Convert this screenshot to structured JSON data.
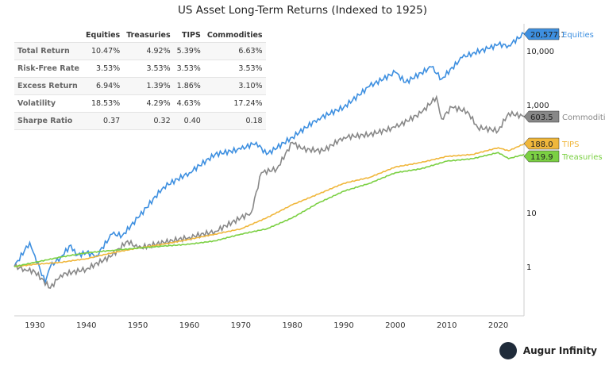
{
  "chart_data": {
    "type": "line",
    "title": "US Asset Long-Term Returns (Indexed to 1925)",
    "x_axis": {
      "ticks": [
        1930,
        1940,
        1950,
        1960,
        1970,
        1980,
        1990,
        2000,
        2010,
        2020
      ],
      "range": [
        1926,
        2025
      ]
    },
    "y_axis": {
      "scale": "log",
      "tick_labels": [
        "1",
        "10",
        "1,000",
        "10,000"
      ],
      "ticks": [
        1,
        10,
        1000,
        10000
      ],
      "range": [
        0.3,
        30000
      ],
      "position": "right"
    },
    "grid": false,
    "series": [
      {
        "name": "Equities",
        "color": "#3d8fe0",
        "end_label": "20,577.1",
        "x": [
          1926,
          1928,
          1929,
          1930,
          1932,
          1933,
          1935,
          1937,
          1938,
          1940,
          1942,
          1945,
          1947,
          1950,
          1955,
          1960,
          1965,
          1970,
          1973,
          1975,
          1980,
          1985,
          1990,
          1995,
          2000,
          2002,
          2007,
          2009,
          2013,
          2015,
          2018,
          2020,
          2022,
          2025
        ],
        "y": [
          1,
          2,
          2.8,
          1.6,
          0.5,
          1,
          1.5,
          2.5,
          1.6,
          1.8,
          1.6,
          4,
          3.8,
          8,
          30,
          55,
          120,
          150,
          200,
          120,
          250,
          550,
          900,
          2200,
          4000,
          2600,
          5000,
          3000,
          7500,
          9000,
          11000,
          13000,
          12500,
          20577.1
        ]
      },
      {
        "name": "Commodities",
        "color": "#888888",
        "end_label": "603.5",
        "x": [
          1926,
          1928,
          1930,
          1933,
          1935,
          1940,
          1945,
          1948,
          1950,
          1955,
          1960,
          1965,
          1970,
          1972,
          1974,
          1977,
          1980,
          1982,
          1986,
          1990,
          1995,
          2000,
          2005,
          2008,
          2009,
          2011,
          2014,
          2016,
          2020,
          2022,
          2025
        ],
        "y": [
          1,
          0.9,
          0.8,
          0.4,
          0.7,
          0.9,
          1.6,
          3.0,
          2.2,
          2.8,
          3.5,
          4.5,
          8,
          10,
          55,
          65,
          200,
          150,
          140,
          250,
          280,
          380,
          700,
          1400,
          550,
          900,
          750,
          380,
          330,
          700,
          603.5
        ]
      },
      {
        "name": "TIPS",
        "color": "#f0b73c",
        "end_label": "188.0",
        "x": [
          1926,
          1930,
          1935,
          1940,
          1945,
          1950,
          1955,
          1960,
          1965,
          1970,
          1975,
          1980,
          1985,
          1990,
          1995,
          2000,
          2005,
          2010,
          2015,
          2020,
          2022,
          2025
        ],
        "y": [
          1,
          1.1,
          1.2,
          1.4,
          1.8,
          2.2,
          2.6,
          3.2,
          4,
          5,
          8,
          14,
          22,
          35,
          45,
          70,
          85,
          110,
          120,
          160,
          140,
          188
        ]
      },
      {
        "name": "Treasuries",
        "color": "#7bd043",
        "end_label": "119.9",
        "x": [
          1926,
          1930,
          1935,
          1940,
          1945,
          1950,
          1955,
          1960,
          1965,
          1970,
          1975,
          1980,
          1985,
          1990,
          1995,
          2000,
          2005,
          2010,
          2015,
          2020,
          2022,
          2025
        ],
        "y": [
          1,
          1.2,
          1.5,
          1.8,
          2,
          2.2,
          2.4,
          2.6,
          3,
          4,
          5,
          8,
          15,
          25,
          35,
          55,
          65,
          90,
          100,
          130,
          100,
          119.9
        ]
      }
    ],
    "table": {
      "columns": [
        "",
        "Equities",
        "Treasuries",
        "TIPS",
        "Commodities"
      ],
      "rows": [
        [
          "Total Return",
          "10.47%",
          "4.92%",
          "5.39%",
          "6.63%"
        ],
        [
          "Risk-Free Rate",
          "3.53%",
          "3.53%",
          "3.53%",
          "3.53%"
        ],
        [
          "Excess Return",
          "6.94%",
          "1.39%",
          "1.86%",
          "3.10%"
        ],
        [
          "Volatility",
          "18.53%",
          "4.29%",
          "4.63%",
          "17.24%"
        ],
        [
          "Sharpe Ratio",
          "0.37",
          "0.32",
          "0.40",
          "0.18"
        ]
      ]
    }
  },
  "brand": {
    "name": "Augur Infinity"
  }
}
